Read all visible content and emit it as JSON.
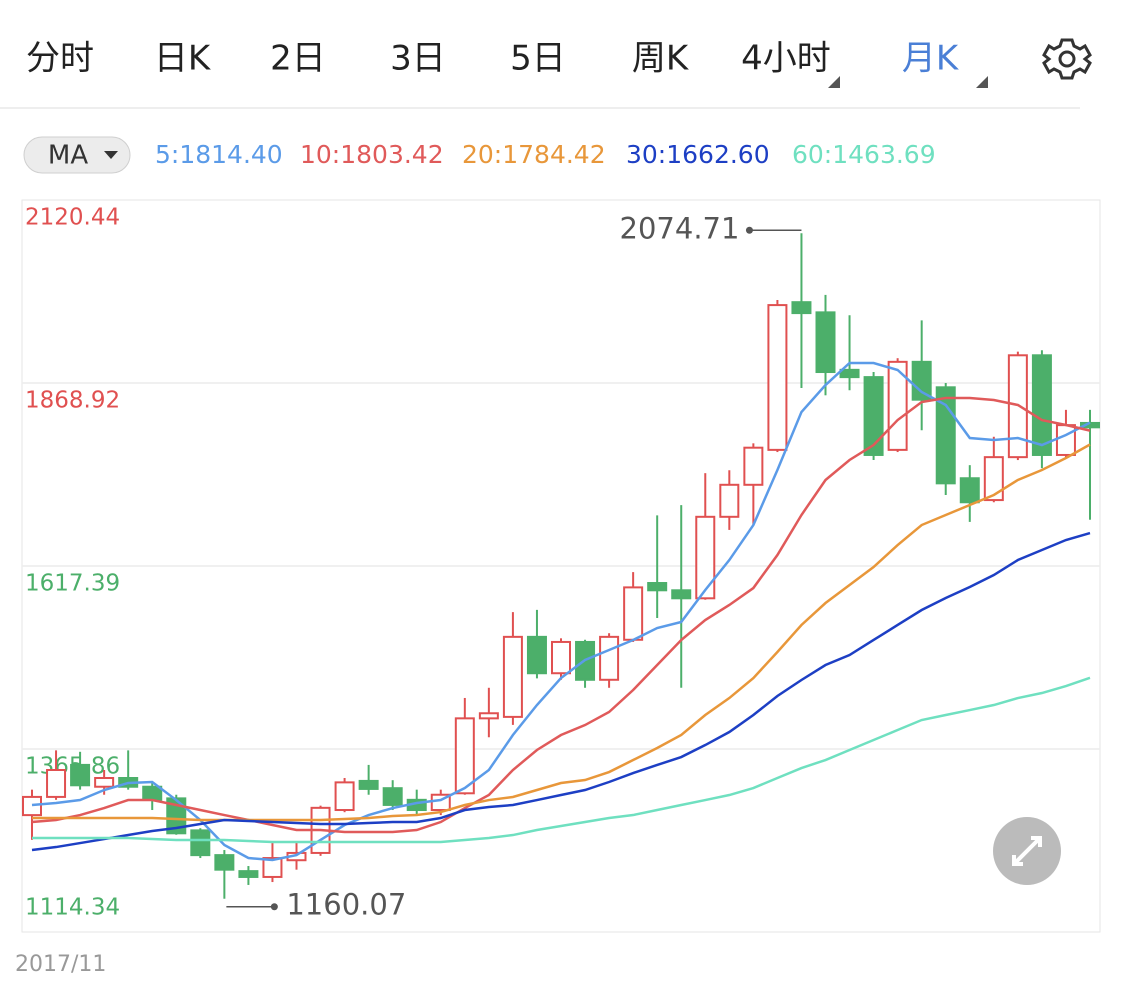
{
  "tabs": [
    "分时",
    "日K",
    "2日",
    "3日",
    "5日",
    "周K",
    "4小时",
    "月K"
  ],
  "selected_tab": 7,
  "ma_button": "MA",
  "chart_data": {
    "type": "candlestick",
    "categories": [
      "2017/11",
      null,
      null,
      null,
      null,
      null,
      null,
      null,
      null,
      null,
      null,
      null,
      null,
      null,
      null,
      null,
      null,
      null,
      null,
      null,
      null,
      null,
      null,
      null,
      null,
      null,
      null,
      null,
      null,
      null,
      null,
      null,
      null,
      null,
      null,
      null,
      null,
      null,
      null,
      null,
      null,
      null,
      null,
      null,
      null
    ],
    "open": [
      1275,
      1300,
      1344,
      1314,
      1326,
      1314,
      1298,
      1254,
      1220,
      1198,
      1190,
      1213,
      1223,
      1282,
      1322,
      1312,
      1296,
      1282,
      1305,
      1408,
      1410,
      1520,
      1470,
      1513,
      1461,
      1516,
      1594,
      1584,
      1573,
      1685,
      1729,
      1777,
      1980,
      1966,
      1887,
      1877,
      1777,
      1898,
      1863,
      1738,
      1708,
      1767,
      1907,
      1770,
      1814
    ],
    "high": [
      1310,
      1364,
      1362,
      1337,
      1364,
      1319,
      1303,
      1257,
      1227,
      1205,
      1237,
      1237,
      1288,
      1326,
      1344,
      1323,
      1310,
      1310,
      1436,
      1450,
      1554,
      1557,
      1518,
      1516,
      1525,
      1609,
      1687,
      1701,
      1745,
      1749,
      1786,
      1983,
      2074.71,
      1990,
      1962,
      1884,
      1903,
      1955,
      1869,
      1756,
      1795,
      1912,
      1914,
      1832,
      1832
    ],
    "low": [
      1241,
      1296,
      1310,
      1303,
      1310,
      1282,
      1248,
      1216,
      1160.07,
      1179,
      1183,
      1200,
      1219,
      1279,
      1303,
      1282,
      1275,
      1275,
      1303,
      1382,
      1399,
      1463,
      1461,
      1450,
      1450,
      1513,
      1546,
      1450,
      1571,
      1667,
      1674,
      1774,
      1862,
      1852,
      1859,
      1763,
      1774,
      1804,
      1715,
      1678,
      1705,
      1763,
      1752,
      1767,
      1681
    ],
    "close": [
      1300,
      1337,
      1316,
      1326,
      1314,
      1296,
      1250,
      1220,
      1200,
      1190,
      1216,
      1223,
      1285,
      1320,
      1311,
      1289,
      1282,
      1303,
      1408,
      1415,
      1520,
      1470,
      1513,
      1461,
      1520,
      1588,
      1584,
      1573,
      1685,
      1729,
      1780,
      1976,
      1965,
      1884,
      1877,
      1770,
      1898,
      1846,
      1731,
      1705,
      1767,
      1907,
      1770,
      1811,
      1808
    ],
    "up_color": "#e05050",
    "down_color": "#4caf6a",
    "series": [
      {
        "name": "5:1814.40",
        "color": "#5b9be8",
        "values": [
          1288.9,
          1291.6,
          1295.7,
          1309.5,
          1319.1,
          1320.5,
          1295.7,
          1268.3,
          1233.9,
          1216.0,
          1213.3,
          1220.1,
          1240.8,
          1261.4,
          1275.1,
          1284.7,
          1291.6,
          1295.7,
          1312.2,
          1337.0,
          1385.1,
          1426.3,
          1463.4,
          1488.2,
          1501.9,
          1515.7,
          1532.1,
          1540.4,
          1584.4,
          1625.6,
          1673.7,
          1749.3,
          1829.0,
          1866.1,
          1896.4,
          1896.4,
          1886.8,
          1856.5,
          1838.7,
          1793.3,
          1790.5,
          1793.3,
          1783.7,
          1797.4,
          1814.4
        ]
      },
      {
        "name": "10:1803.42",
        "color": "#e05a5a",
        "values": [
          1265.5,
          1268.3,
          1275.1,
          1284.7,
          1295.7,
          1295.7,
          1288.9,
          1282.0,
          1275.1,
          1268.3,
          1261.4,
          1254.5,
          1254.5,
          1251.8,
          1251.8,
          1251.8,
          1254.5,
          1265.5,
          1284.7,
          1302.6,
          1337.0,
          1364.5,
          1385.1,
          1398.8,
          1416.7,
          1446.9,
          1481.3,
          1515.7,
          1543.1,
          1563.8,
          1587.1,
          1632.5,
          1687.5,
          1735.6,
          1763.1,
          1783.7,
          1818.0,
          1842.8,
          1848.3,
          1848.3,
          1845.5,
          1838.7,
          1818.0,
          1811.2,
          1803.42
        ]
      },
      {
        "name": "20:1784.42",
        "color": "#e8973a",
        "values": [
          1271.0,
          1271.0,
          1271.0,
          1271.0,
          1271.0,
          1271.0,
          1269.6,
          1268.3,
          1268.3,
          1268.3,
          1268.3,
          1268.3,
          1268.3,
          1269.6,
          1271.0,
          1273.7,
          1275.1,
          1279.2,
          1288.9,
          1295.7,
          1299.9,
          1309.5,
          1319.1,
          1323.2,
          1334.2,
          1350.7,
          1367.2,
          1385.1,
          1412.6,
          1435.9,
          1463.4,
          1499.2,
          1536.3,
          1566.5,
          1591.3,
          1616.0,
          1646.2,
          1673.7,
          1687.5,
          1701.2,
          1715.0,
          1735.6,
          1749.3,
          1765.8,
          1784.42
        ]
      },
      {
        "name": "30:1662.60",
        "color": "#1d3fc4",
        "values": [
          1227.0,
          1231.1,
          1236.6,
          1242.1,
          1247.6,
          1253.1,
          1257.3,
          1262.8,
          1268.3,
          1266.9,
          1265.5,
          1264.1,
          1262.8,
          1262.8,
          1264.1,
          1265.5,
          1265.5,
          1271.0,
          1282.0,
          1286.1,
          1288.9,
          1295.7,
          1302.6,
          1309.5,
          1320.5,
          1332.8,
          1343.9,
          1354.8,
          1371.3,
          1389.2,
          1412.6,
          1438.7,
          1460.7,
          1481.3,
          1495.0,
          1515.7,
          1536.3,
          1556.9,
          1573.4,
          1588.5,
          1605.0,
          1625.6,
          1639.4,
          1653.1,
          1662.6
        ]
      },
      {
        "name": "60:1463.69",
        "color": "#6fe0c0",
        "values": [
          1243.5,
          1243.5,
          1243.5,
          1243.5,
          1243.5,
          1242.1,
          1240.8,
          1240.8,
          1240.8,
          1239.4,
          1238.0,
          1238.0,
          1238.0,
          1238.0,
          1238.0,
          1238.0,
          1238.0,
          1238.0,
          1240.8,
          1243.5,
          1247.6,
          1254.5,
          1260.0,
          1265.5,
          1271.0,
          1275.1,
          1282.0,
          1288.9,
          1295.7,
          1302.6,
          1312.2,
          1326.0,
          1339.7,
          1350.7,
          1364.5,
          1378.2,
          1392.0,
          1405.7,
          1412.6,
          1419.4,
          1426.3,
          1435.9,
          1442.8,
          1452.4,
          1463.69
        ]
      }
    ],
    "ylim": [
      1114.34,
      2120.44
    ],
    "yticks": [
      1114.34,
      1365.86,
      1617.39,
      1868.92,
      2120.44
    ],
    "ytick_colors": [
      "#4caf6a",
      "#4caf6a",
      "#4caf6a",
      "#e05050",
      "#e05050"
    ],
    "grid": true
  }
}
